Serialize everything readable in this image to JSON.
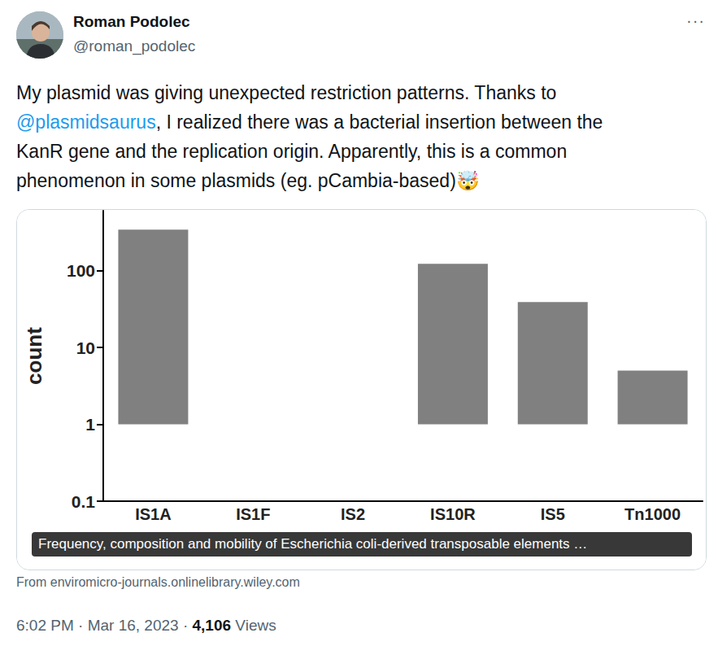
{
  "tweet": {
    "author_name": "Roman Podolec",
    "handle": "@roman_podolec",
    "more": "···",
    "text_lines": [
      [
        {
          "text": "My plasmid was giving unexpected restriction patterns. Thanks to"
        }
      ],
      [
        {
          "text": "@plasmidsaurus",
          "mention": true
        },
        {
          "text": ", I realized there was a bacterial insertion between the"
        }
      ],
      [
        {
          "text": "KanR gene and the replication origin. Apparently, this is a common"
        }
      ],
      [
        {
          "text": "phenomenon in some plasmids (eg. pCambia-based)🤯"
        }
      ]
    ],
    "card_caption": "Frequency, composition and mobility of Escherichia coli-derived transposable elements …",
    "card_source": "From enviromicro-journals.onlinelibrary.wiley.com",
    "time": "6:02 PM",
    "date": "Mar 16, 2023",
    "separator": "·",
    "views": "4,106",
    "views_label": "Views"
  },
  "chart_data": {
    "type": "bar",
    "y_label": "count",
    "categories": [
      "IS1A",
      "IS1F",
      "IS2",
      "IS10R",
      "IS5",
      "Tn1000"
    ],
    "values": [
      341,
      1,
      1,
      122,
      39,
      5
    ],
    "color": "#808080",
    "ylim": [
      0.1,
      600
    ],
    "yticks": [
      0.1,
      1,
      10,
      100
    ],
    "log": "y",
    "grid": false
  }
}
